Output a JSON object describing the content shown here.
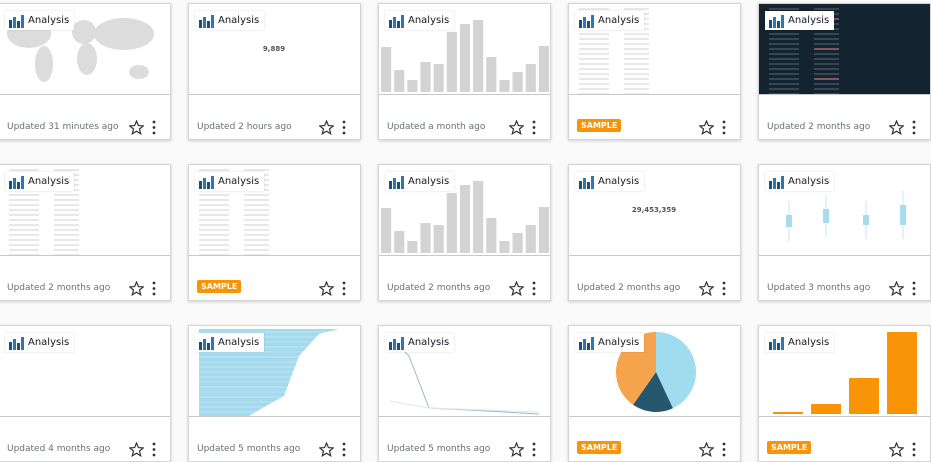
{
  "cards": [
    {
      "label": "Analysis",
      "updated": "Updated 31 minutes ago"
    },
    {
      "label": "Analysis",
      "value": "9,889",
      "updated": "Updated 2 hours ago"
    },
    {
      "label": "Analysis",
      "updated": "Updated a month ago"
    },
    {
      "label": "Analysis",
      "badge": "SAMPLE"
    },
    {
      "label": "Analysis",
      "updated": "Updated 2 months ago"
    },
    {
      "label": "Analysis",
      "updated": "Updated 2 months ago"
    },
    {
      "label": "Analysis",
      "badge": "SAMPLE"
    },
    {
      "label": "Analysis",
      "updated": "Updated 2 months ago"
    },
    {
      "label": "Analysis",
      "value": "29,453,359",
      "updated": "Updated 2 months ago"
    },
    {
      "label": "Analysis",
      "updated": "Updated 3 months ago"
    },
    {
      "label": "Analysis",
      "updated": "Updated 4 months ago"
    },
    {
      "label": "Analysis",
      "updated": "Updated 5 months ago"
    },
    {
      "label": "Analysis",
      "updated": "Updated 5 months ago"
    },
    {
      "label": "Analysis",
      "badge": "SAMPLE"
    },
    {
      "label": "Analysis",
      "badge": "SAMPLE"
    }
  ]
}
